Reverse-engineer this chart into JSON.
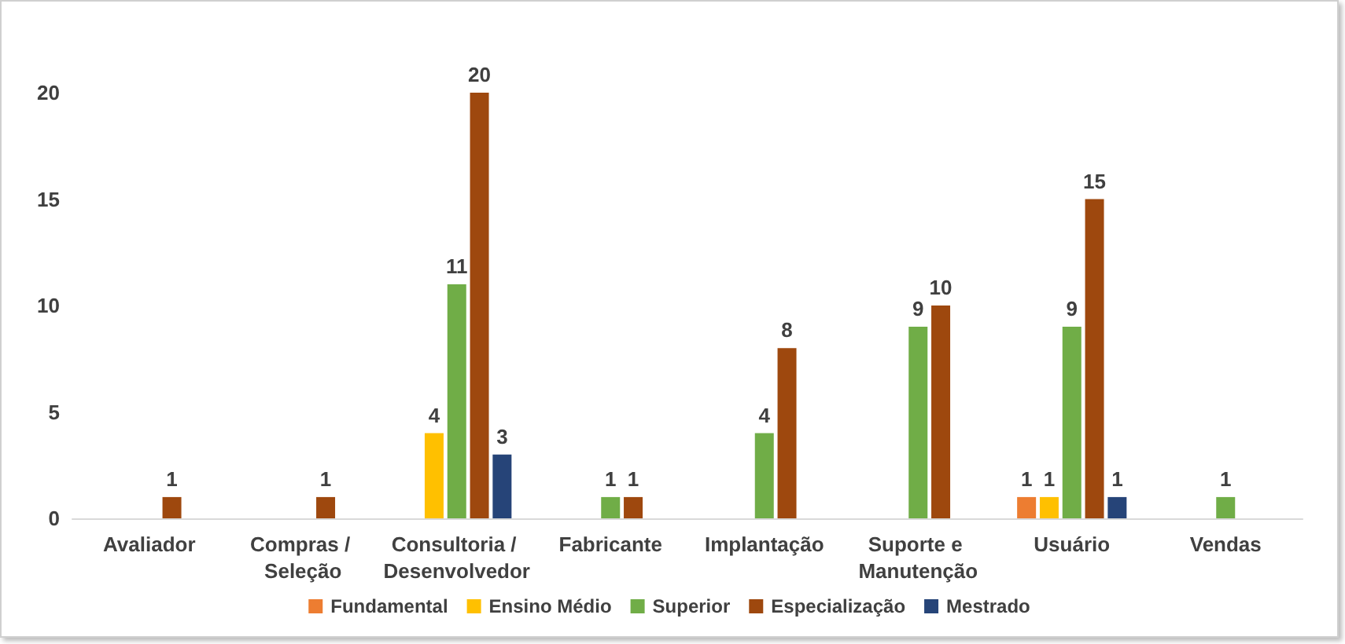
{
  "chart_data": {
    "type": "bar",
    "categories": [
      "Avaliador",
      "Compras / Seleção",
      "Consultoria / Desenvolvedor",
      "Fabricante",
      "Implantação",
      "Suporte e Manutenção",
      "Usuário",
      "Vendas"
    ],
    "series": [
      {
        "name": "Fundamental",
        "color": "#ed7d31",
        "values": [
          null,
          null,
          null,
          null,
          null,
          null,
          1,
          null
        ]
      },
      {
        "name": "Ensino Médio",
        "color": "#ffc000",
        "values": [
          null,
          null,
          4,
          null,
          null,
          null,
          1,
          null
        ]
      },
      {
        "name": "Superior",
        "color": "#70ad47",
        "values": [
          null,
          null,
          11,
          1,
          4,
          9,
          9,
          1
        ]
      },
      {
        "name": "Especialização",
        "color": "#9e480e",
        "values": [
          1,
          1,
          20,
          1,
          8,
          10,
          15,
          null
        ]
      },
      {
        "name": "Mestrado",
        "color": "#264478",
        "values": [
          null,
          null,
          3,
          null,
          null,
          null,
          1,
          null
        ]
      }
    ],
    "ylim": [
      0,
      20
    ],
    "yticks": [
      0,
      5,
      10,
      15,
      20
    ],
    "data_labels": true,
    "legend": "bottom",
    "grid": false
  }
}
